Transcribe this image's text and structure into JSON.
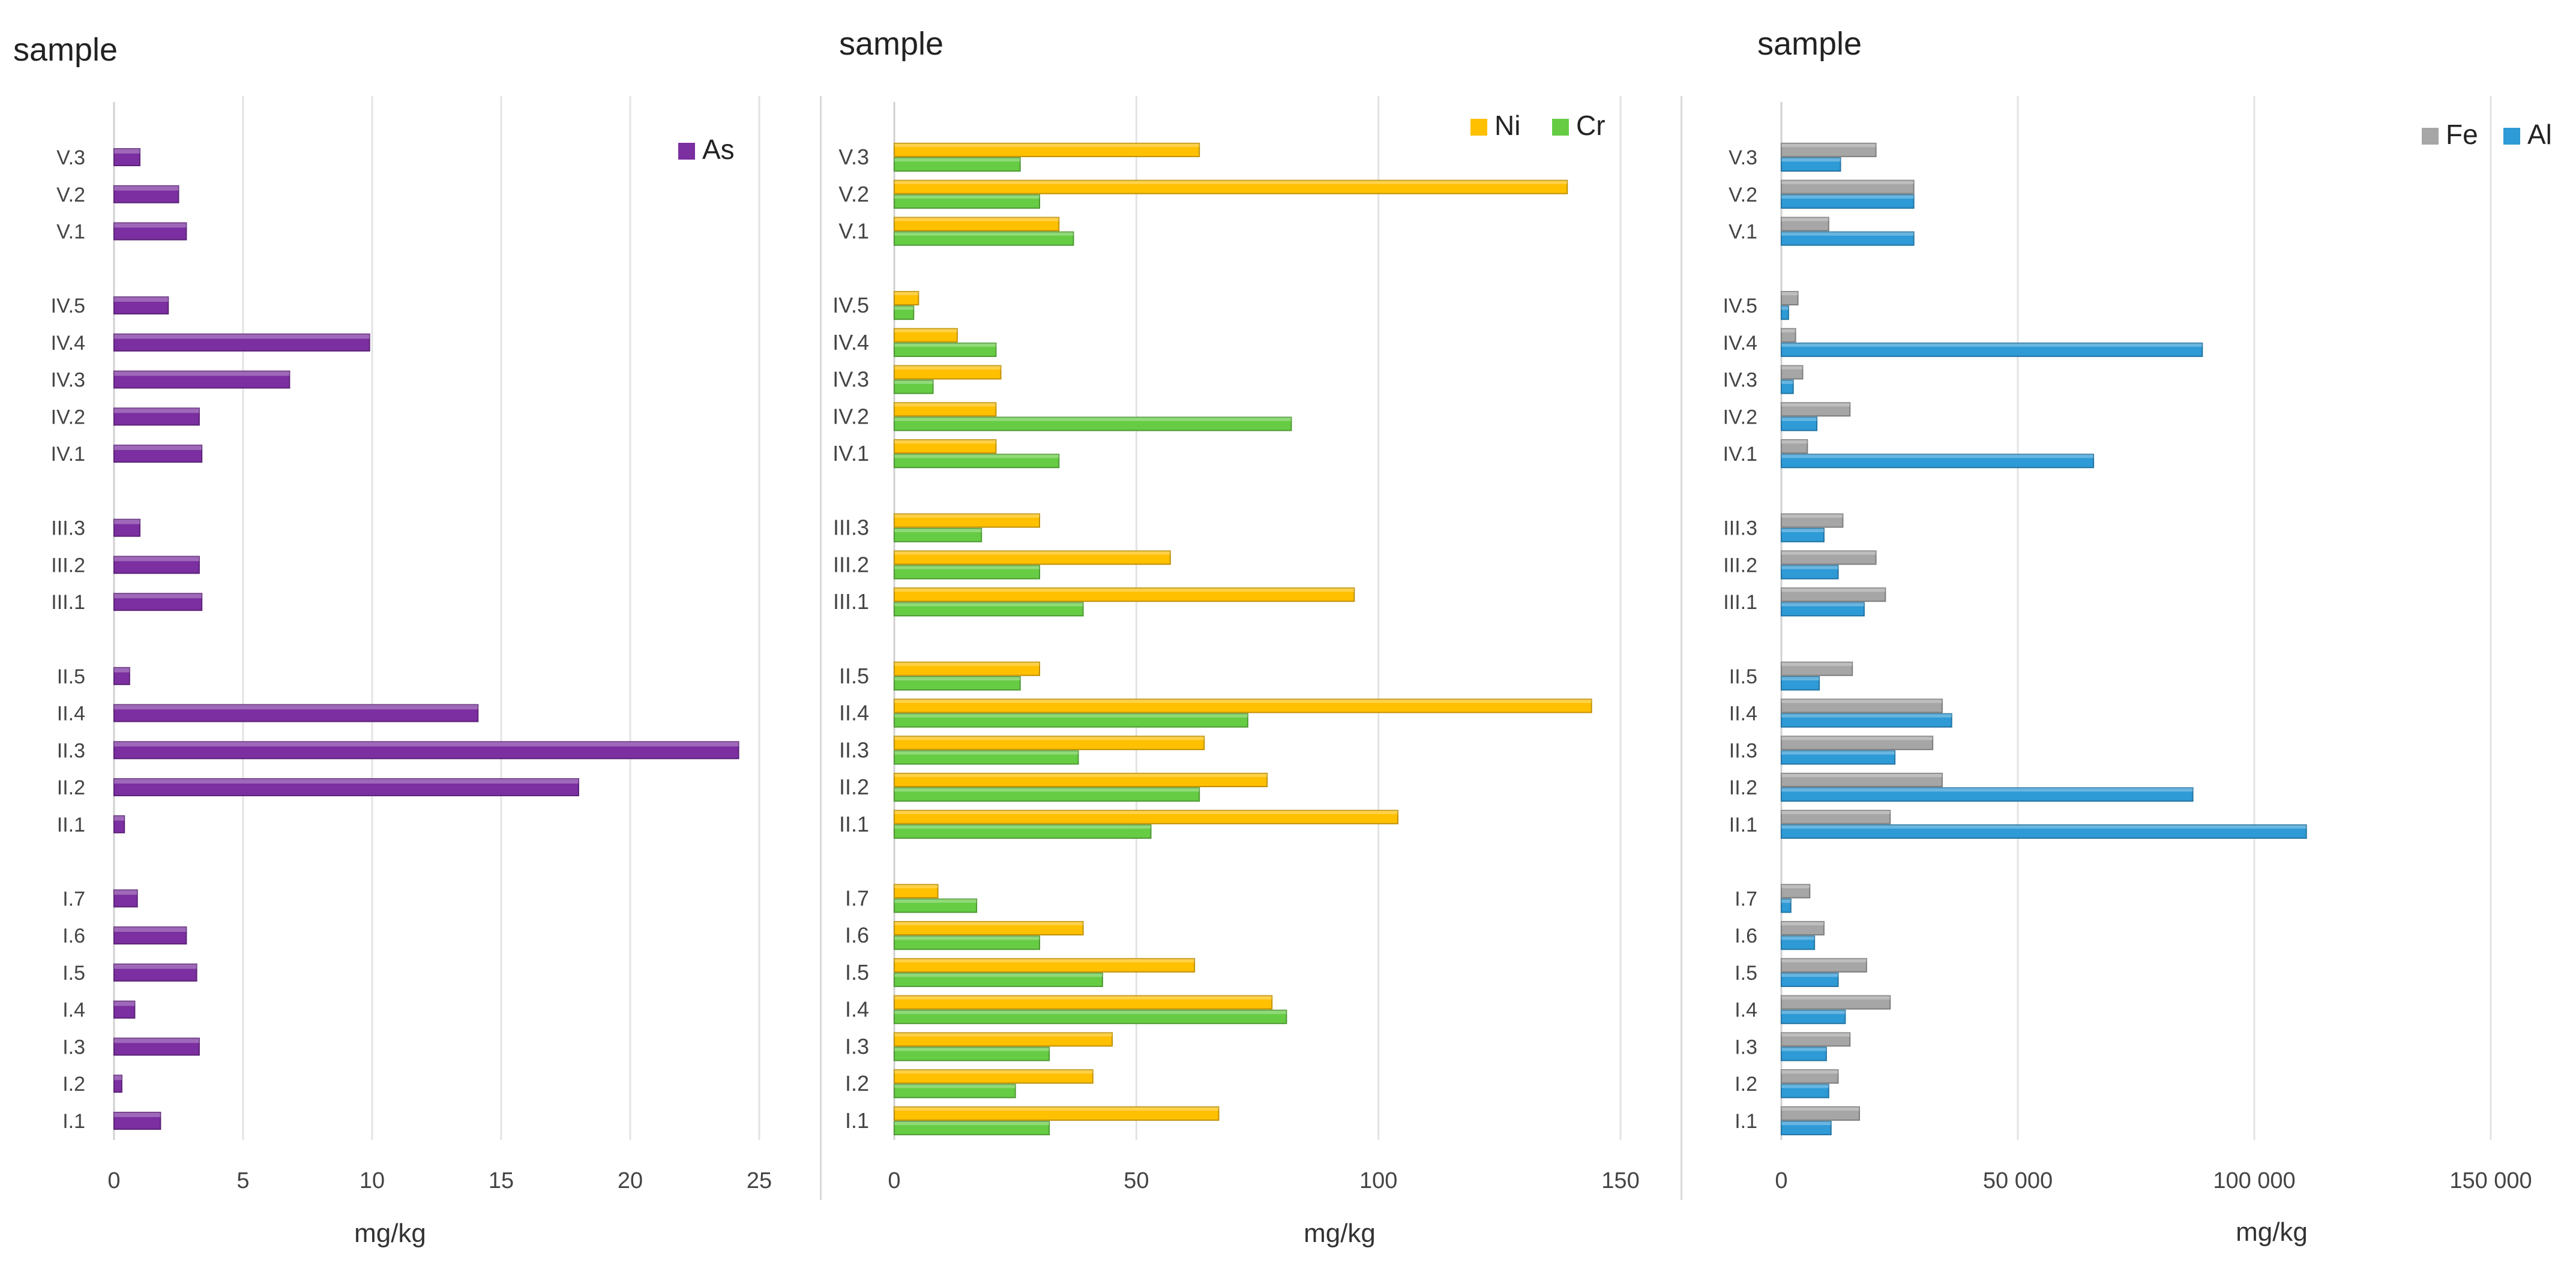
{
  "chart_data": [
    {
      "type": "bar",
      "orientation": "horizontal",
      "title": "sample",
      "ylabel": "sample",
      "xlabel": "mg/kg",
      "xlim": [
        0,
        25
      ],
      "ticks": [
        "0",
        "5",
        "10",
        "15",
        "20",
        "25"
      ],
      "tick_values": [
        0,
        5,
        10,
        15,
        20,
        25
      ],
      "legend_position": "top-right",
      "categories": [
        "V.3",
        "V.2",
        "V.1",
        "IV.5",
        "IV.4",
        "IV.3",
        "IV.2",
        "IV.1",
        "III.3",
        "III.2",
        "III.1",
        "II.5",
        "II.4",
        "II.3",
        "II.2",
        "II.1",
        "I.7",
        "I.6",
        "I.5",
        "I.4",
        "I.3",
        "I.2",
        "I.1"
      ],
      "series": [
        {
          "name": "As",
          "color": "#7b2fa0",
          "values": [
            1.0,
            2.5,
            2.8,
            2.1,
            9.9,
            6.8,
            3.3,
            3.4,
            1.0,
            3.3,
            3.4,
            0.6,
            14.1,
            24.2,
            18.0,
            0.4,
            0.9,
            2.8,
            3.2,
            0.8,
            3.3,
            0.3,
            1.8
          ]
        }
      ]
    },
    {
      "type": "bar",
      "orientation": "horizontal",
      "title": "sample",
      "ylabel": "sample",
      "xlabel": "mg/kg",
      "xlim": [
        0,
        150
      ],
      "ticks": [
        "0",
        "50",
        "100",
        "150"
      ],
      "tick_values": [
        0,
        50,
        100,
        150
      ],
      "legend_position": "top-right",
      "categories": [
        "V.3",
        "V.2",
        "V.1",
        "IV.5",
        "IV.4",
        "IV.3",
        "IV.2",
        "IV.1",
        "III.3",
        "III.2",
        "III.1",
        "II.5",
        "II.4",
        "II.3",
        "II.2",
        "II.1",
        "I.7",
        "I.6",
        "I.5",
        "I.4",
        "I.3",
        "I.2",
        "I.1"
      ],
      "series": [
        {
          "name": "Ni",
          "color": "#ffc000",
          "values": [
            63,
            139,
            34,
            5,
            13,
            22,
            21,
            21,
            30,
            57,
            95,
            30,
            144,
            64,
            77,
            104,
            9,
            39,
            62,
            78,
            45,
            41,
            67
          ]
        },
        {
          "name": "Cr",
          "color": "#66cc44",
          "values": [
            26,
            30,
            37,
            4,
            21,
            8,
            82,
            34,
            18,
            30,
            39,
            26,
            73,
            38,
            63,
            53,
            17,
            30,
            43,
            81,
            32,
            25,
            32
          ]
        }
      ]
    },
    {
      "type": "bar",
      "orientation": "horizontal",
      "title": "sample",
      "ylabel": "sample",
      "xlabel": "mg/kg",
      "xlim": [
        0,
        150000
      ],
      "ticks": [
        "0",
        "50 000",
        "100 000",
        "150 000"
      ],
      "tick_values": [
        0,
        50000,
        100000,
        150000
      ],
      "legend_position": "top-right",
      "categories": [
        "V.3",
        "V.2",
        "V.1",
        "IV.5",
        "IV.4",
        "IV.3",
        "IV.2",
        "IV.1",
        "III.3",
        "III.2",
        "III.1",
        "II.5",
        "II.4",
        "II.3",
        "II.2",
        "II.1",
        "I.7",
        "I.6",
        "I.5",
        "I.4",
        "I.3",
        "I.2",
        "I.1"
      ],
      "series": [
        {
          "name": "Fe",
          "color": "#a6a6a6",
          "values": [
            20000,
            28000,
            10000,
            3500,
            3000,
            4500,
            14500,
            5500,
            13000,
            20000,
            22000,
            15000,
            34000,
            32000,
            34000,
            23000,
            6000,
            9000,
            18000,
            23000,
            14500,
            12000,
            16500
          ]
        },
        {
          "name": "Al",
          "color": "#2e9ad6",
          "values": [
            12500,
            28000,
            28000,
            1500,
            89000,
            2500,
            7500,
            66000,
            9000,
            12000,
            17500,
            8000,
            36000,
            24000,
            87000,
            111000,
            2000,
            7000,
            12000,
            13500,
            9500,
            10000,
            10500
          ]
        }
      ]
    }
  ]
}
